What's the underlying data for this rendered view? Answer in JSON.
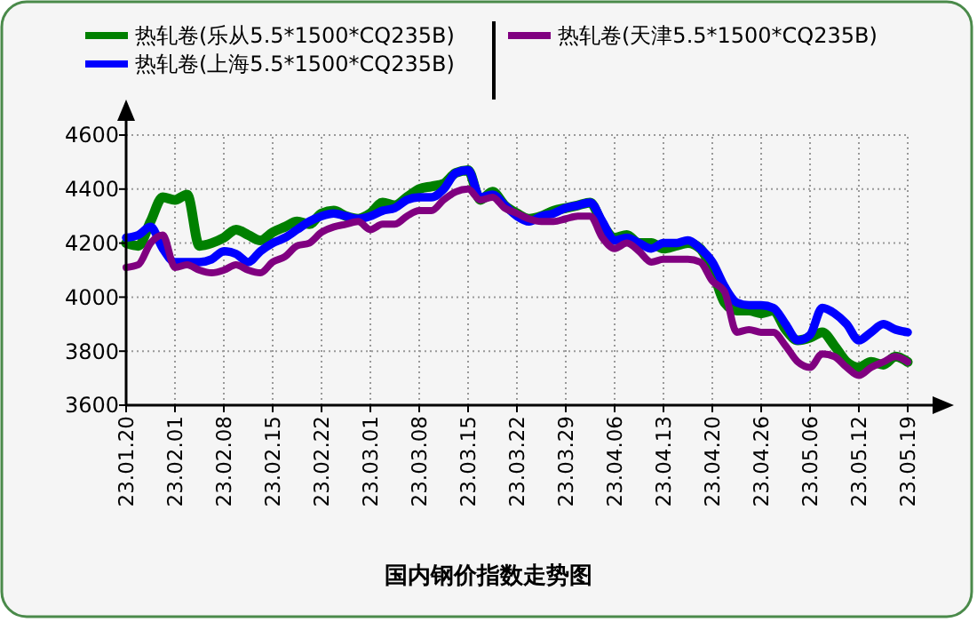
{
  "chart_data": {
    "type": "line",
    "title": "国内钢价指数走势图",
    "categories": [
      "23.01.20",
      null,
      null,
      null,
      "23.02.01",
      null,
      null,
      null,
      "23.02.08",
      null,
      null,
      null,
      "23.02.15",
      null,
      null,
      null,
      "23.02.22",
      null,
      null,
      null,
      "23.03.01",
      null,
      null,
      null,
      "23.03.08",
      null,
      null,
      null,
      "23.03.15",
      null,
      null,
      null,
      "23.03.22",
      null,
      null,
      null,
      "23.03.29",
      null,
      null,
      null,
      "23.04.06",
      null,
      null,
      null,
      "23.04.13",
      null,
      null,
      null,
      "23.04.20",
      null,
      null,
      null,
      "23.04.26",
      null,
      null,
      null,
      "23.05.06",
      null,
      null,
      null,
      "23.05.12",
      null,
      null,
      null,
      "23.05.19"
    ],
    "series": [
      {
        "name": "热轧卷(乐从5.5*1500*CQ235B)",
        "color": "#008000",
        "values": [
          4200,
          4190,
          4280,
          4370,
          4360,
          4380,
          4190,
          4200,
          4220,
          4250,
          4230,
          4210,
          4240,
          4260,
          4280,
          4270,
          4310,
          4320,
          4300,
          4290,
          4310,
          4350,
          4340,
          4370,
          4400,
          4410,
          4420,
          4460,
          4470,
          4360,
          4390,
          4340,
          4310,
          4290,
          4300,
          4320,
          4330,
          4340,
          4350,
          4270,
          4220,
          4230,
          4200,
          4200,
          4180,
          4190,
          4200,
          4180,
          4100,
          3980,
          3950,
          3950,
          3940,
          3950,
          3880,
          3840,
          3850,
          3870,
          3820,
          3760,
          3740,
          3760,
          3750,
          3780,
          3760
        ]
      },
      {
        "name": "热轧卷(上海5.5*1500*CQ235B)",
        "color": "#0000ff",
        "values": [
          4220,
          4230,
          4260,
          4180,
          4130,
          4130,
          4130,
          4140,
          4170,
          4160,
          4130,
          4170,
          4200,
          4220,
          4250,
          4280,
          4300,
          4310,
          4300,
          4290,
          4300,
          4320,
          4330,
          4360,
          4370,
          4370,
          4400,
          4460,
          4470,
          4370,
          4380,
          4340,
          4300,
          4280,
          4300,
          4310,
          4330,
          4340,
          4350,
          4280,
          4210,
          4220,
          4200,
          4180,
          4200,
          4200,
          4210,
          4180,
          4130,
          4040,
          3980,
          3970,
          3970,
          3960,
          3900,
          3840,
          3860,
          3960,
          3940,
          3900,
          3840,
          3870,
          3900,
          3880,
          3870
        ]
      },
      {
        "name": "热轧卷(天津5.5*1500*CQ235B)",
        "color": "#800080",
        "values": [
          4110,
          4120,
          4200,
          4230,
          4110,
          4120,
          4100,
          4090,
          4100,
          4120,
          4100,
          4090,
          4130,
          4150,
          4190,
          4200,
          4240,
          4260,
          4270,
          4280,
          4250,
          4270,
          4270,
          4300,
          4320,
          4320,
          4360,
          4390,
          4400,
          4360,
          4370,
          4330,
          4310,
          4290,
          4280,
          4280,
          4290,
          4300,
          4300,
          4220,
          4180,
          4200,
          4170,
          4130,
          4140,
          4140,
          4140,
          4130,
          4060,
          4020,
          3870,
          3880,
          3870,
          3870,
          3820,
          3760,
          3740,
          3790,
          3780,
          3740,
          3710,
          3740,
          3760,
          3780,
          3760
        ]
      }
    ],
    "ylim": [
      3600,
      4600
    ],
    "yticks": [
      3600,
      3800,
      4000,
      4200,
      4400,
      4600
    ],
    "grid": true,
    "legend": "top",
    "line_style": "solid"
  }
}
